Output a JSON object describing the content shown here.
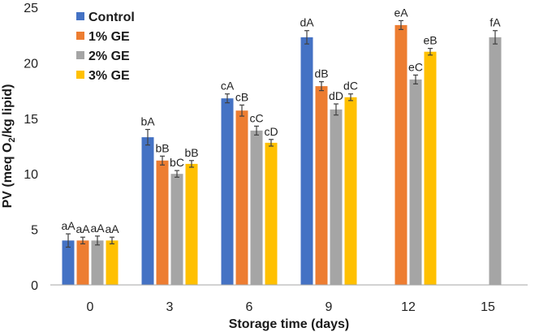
{
  "chart_data": {
    "type": "bar",
    "categories": [
      "0",
      "3",
      "6",
      "9",
      "12",
      "15"
    ],
    "xlabel": "Storage time (days)",
    "ylabel_parts": [
      "PV (meq O",
      "2",
      "/kg lipid)"
    ],
    "ylim": [
      0,
      25
    ],
    "yticks": [
      "0",
      "5",
      "10",
      "15",
      "20",
      "25"
    ],
    "legend_position": "top-left",
    "series": [
      {
        "name": "Control",
        "color": "#4472C4",
        "values": [
          4.0,
          13.3,
          16.8,
          22.3,
          null,
          null
        ],
        "errors": [
          0.6,
          0.7,
          0.4,
          0.6,
          null,
          null
        ],
        "labels": [
          "aA",
          "bA",
          "cA",
          "dA",
          null,
          null
        ]
      },
      {
        "name": "1% GE",
        "color": "#ED7D31",
        "values": [
          4.0,
          11.2,
          15.7,
          17.9,
          23.4,
          null
        ],
        "errors": [
          0.3,
          0.4,
          0.5,
          0.4,
          0.4,
          null
        ],
        "labels": [
          "aA",
          "bB",
          "cB",
          "dB",
          "eA",
          null
        ]
      },
      {
        "name": "2% GE",
        "color": "#A5A5A5",
        "values": [
          4.0,
          10.0,
          13.9,
          15.8,
          18.5,
          22.3
        ],
        "errors": [
          0.4,
          0.3,
          0.4,
          0.5,
          0.4,
          0.6
        ],
        "labels": [
          "aA",
          "bC",
          "cC",
          "dD",
          "eC",
          "fA"
        ]
      },
      {
        "name": "3% GE",
        "color": "#FFC000",
        "values": [
          4.0,
          10.9,
          12.8,
          16.9,
          21.0,
          null
        ],
        "errors": [
          0.3,
          0.3,
          0.3,
          0.3,
          0.3,
          null
        ],
        "labels": [
          "aA",
          "bB",
          "cD",
          "dC",
          "eB",
          null
        ]
      }
    ]
  }
}
